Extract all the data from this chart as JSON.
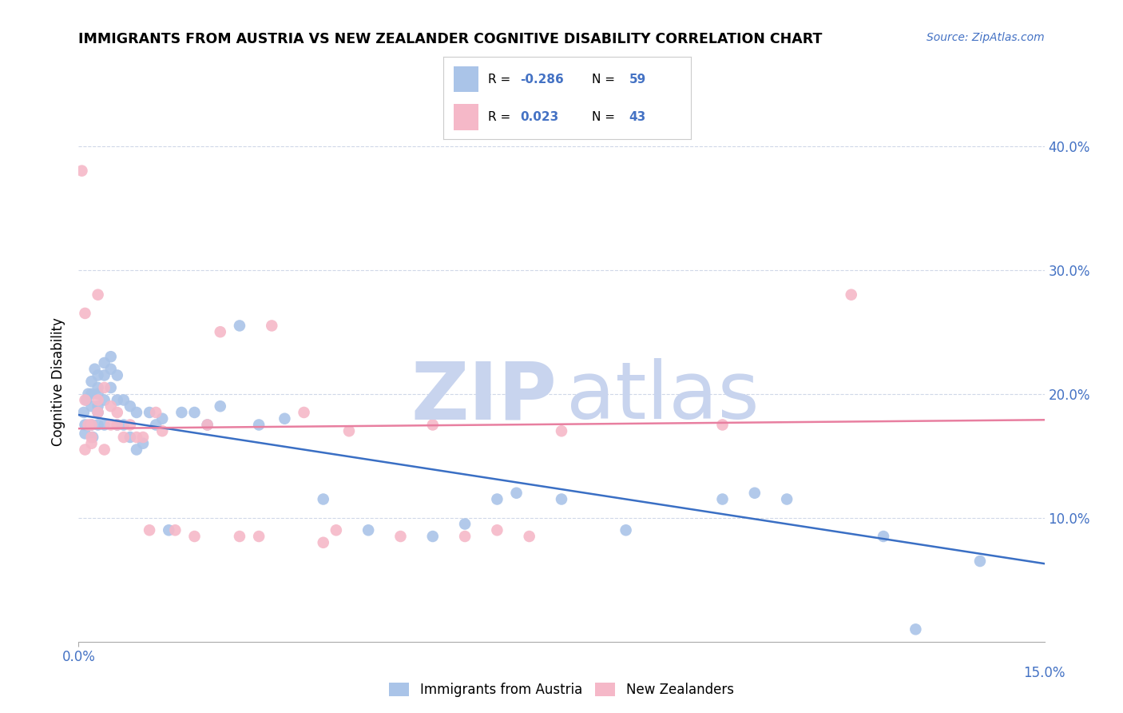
{
  "title": "IMMIGRANTS FROM AUSTRIA VS NEW ZEALANDER COGNITIVE DISABILITY CORRELATION CHART",
  "source": "Source: ZipAtlas.com",
  "xlim": [
    0.0,
    0.15
  ],
  "ylim": [
    0.0,
    0.42
  ],
  "ylabel": "Cognitive Disability",
  "legend_label1": "Immigrants from Austria",
  "legend_label2": "New Zealanders",
  "R1": "-0.286",
  "N1": "59",
  "R2": "0.023",
  "N2": "43",
  "color_blue": "#aac4e8",
  "color_pink": "#f5b8c8",
  "line_blue": "#3a6fc4",
  "line_pink": "#e87fa0",
  "watermark_zip_color": "#c8d4ee",
  "watermark_atlas_color": "#c8d4ee",
  "blue_x": [
    0.0008,
    0.001,
    0.001,
    0.0012,
    0.0015,
    0.002,
    0.002,
    0.002,
    0.002,
    0.0022,
    0.0025,
    0.003,
    0.003,
    0.003,
    0.003,
    0.003,
    0.003,
    0.004,
    0.004,
    0.004,
    0.004,
    0.005,
    0.005,
    0.005,
    0.006,
    0.006,
    0.006,
    0.007,
    0.007,
    0.008,
    0.008,
    0.009,
    0.009,
    0.01,
    0.011,
    0.012,
    0.013,
    0.014,
    0.016,
    0.018,
    0.02,
    0.022,
    0.025,
    0.028,
    0.032,
    0.038,
    0.045,
    0.055,
    0.06,
    0.065,
    0.068,
    0.075,
    0.085,
    0.1,
    0.105,
    0.11,
    0.125,
    0.13,
    0.14
  ],
  "blue_y": [
    0.185,
    0.175,
    0.168,
    0.195,
    0.2,
    0.21,
    0.2,
    0.19,
    0.175,
    0.165,
    0.22,
    0.215,
    0.205,
    0.2,
    0.19,
    0.185,
    0.175,
    0.225,
    0.215,
    0.195,
    0.175,
    0.23,
    0.22,
    0.205,
    0.215,
    0.195,
    0.175,
    0.195,
    0.175,
    0.19,
    0.165,
    0.185,
    0.155,
    0.16,
    0.185,
    0.175,
    0.18,
    0.09,
    0.185,
    0.185,
    0.175,
    0.19,
    0.255,
    0.175,
    0.18,
    0.115,
    0.09,
    0.085,
    0.095,
    0.115,
    0.12,
    0.115,
    0.09,
    0.115,
    0.12,
    0.115,
    0.085,
    0.01,
    0.065
  ],
  "pink_x": [
    0.0005,
    0.001,
    0.001,
    0.001,
    0.0015,
    0.002,
    0.002,
    0.002,
    0.003,
    0.003,
    0.003,
    0.004,
    0.004,
    0.005,
    0.005,
    0.006,
    0.006,
    0.007,
    0.008,
    0.009,
    0.01,
    0.011,
    0.012,
    0.013,
    0.015,
    0.018,
    0.02,
    0.022,
    0.025,
    0.028,
    0.03,
    0.035,
    0.038,
    0.04,
    0.042,
    0.05,
    0.055,
    0.06,
    0.065,
    0.07,
    0.075,
    0.1,
    0.12
  ],
  "pink_y": [
    0.38,
    0.265,
    0.195,
    0.155,
    0.175,
    0.175,
    0.165,
    0.16,
    0.28,
    0.195,
    0.185,
    0.205,
    0.155,
    0.19,
    0.175,
    0.185,
    0.175,
    0.165,
    0.175,
    0.165,
    0.165,
    0.09,
    0.185,
    0.17,
    0.09,
    0.085,
    0.175,
    0.25,
    0.085,
    0.085,
    0.255,
    0.185,
    0.08,
    0.09,
    0.17,
    0.085,
    0.175,
    0.085,
    0.09,
    0.085,
    0.17,
    0.175,
    0.28
  ],
  "blue_trend_x": [
    0.0,
    0.15
  ],
  "blue_trend_y": [
    0.183,
    0.063
  ],
  "pink_trend_x": [
    0.0,
    0.15
  ],
  "pink_trend_y": [
    0.172,
    0.179
  ],
  "yticks": [
    0.1,
    0.2,
    0.3,
    0.4
  ],
  "xtick_positions": [
    0.0,
    0.15
  ],
  "xtick_labels": [
    "0.0%",
    "15.0%"
  ],
  "ytick_labels": [
    "10.0%",
    "20.0%",
    "30.0%",
    "40.0%"
  ],
  "grid_color": "#d0d8e8",
  "tick_color": "#4472c4"
}
